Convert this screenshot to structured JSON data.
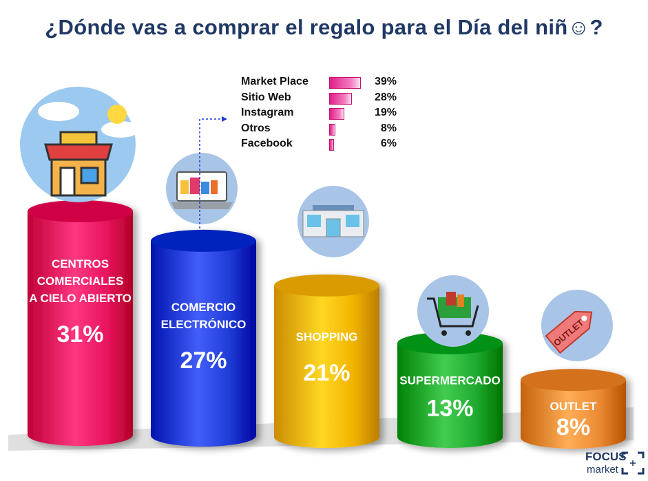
{
  "title": "¿Dónde vas a comprar el regalo para el Día del niñ☺?",
  "chart_data": [
    {
      "type": "bar",
      "categories": [
        "CENTROS COMERCIALES A CIELO ABIERTO",
        "COMERCIO ELECTRÓNICO",
        "SHOPPING",
        "SUPERMERCADO",
        "OUTLET"
      ],
      "label_lines": [
        [
          "CENTROS",
          "COMERCIALES",
          "A CIELO ABIERTO"
        ],
        [
          "COMERCIO",
          "ELECTRÓNICO"
        ],
        [
          "SHOPPING"
        ],
        [
          "SUPERMERCADO"
        ],
        [
          "OUTLET"
        ]
      ],
      "values": [
        31,
        27,
        21,
        13,
        8
      ],
      "value_labels": [
        "31%",
        "27%",
        "21%",
        "13%",
        "8%"
      ],
      "colors": [
        "#e8145e",
        "#1f3bd6",
        "#f2b400",
        "#1faa2e",
        "#ec8a34"
      ],
      "icons": [
        "open-air-mall-icon",
        "laptop-shopping-icon",
        "shopping-center-icon",
        "shopping-cart-icon",
        "outlet-tag-icon"
      ]
    },
    {
      "type": "bar",
      "categories": [
        "Market Place",
        "Sitio Web",
        "Instagram",
        "Otros",
        "Facebook"
      ],
      "values": [
        39,
        28,
        19,
        8,
        6
      ],
      "value_labels": [
        "39%",
        "28%",
        "19%",
        "8%",
        "6%"
      ]
    }
  ],
  "logo": {
    "line1": "FOCUS",
    "line2": "market"
  }
}
